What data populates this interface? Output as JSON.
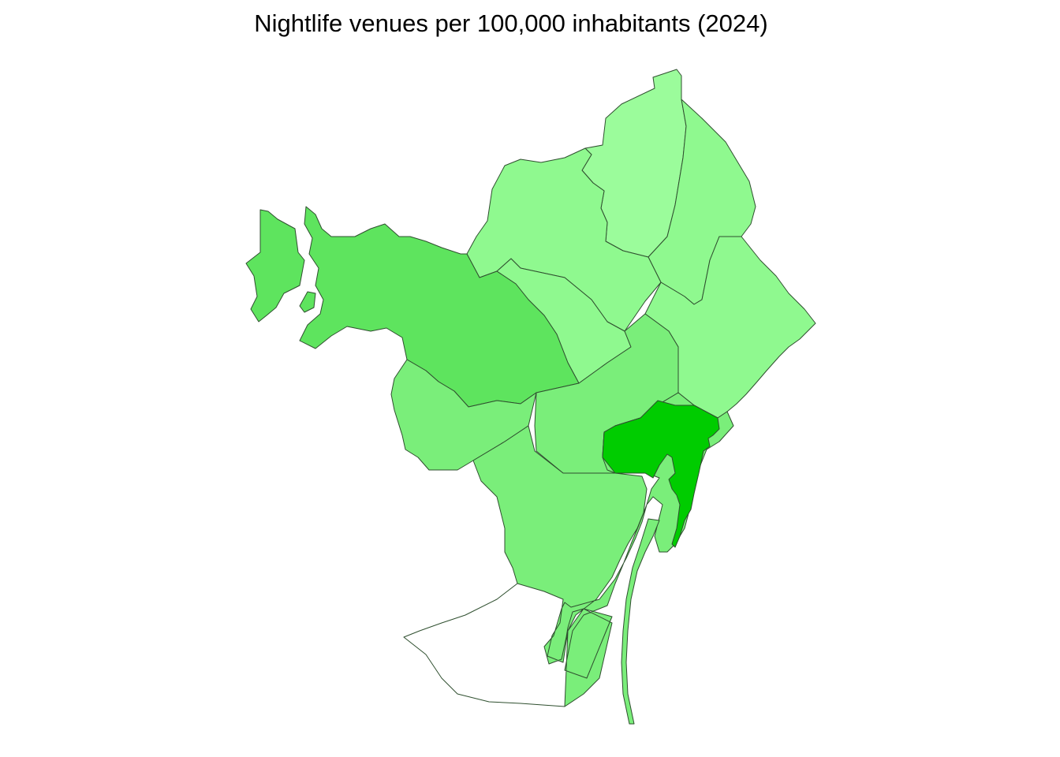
{
  "title": "Nightlife venues per 100,000 inhabitants (2024)",
  "fill_colors": {
    "lightest": "#9bfc9b",
    "light": "#8ff98f",
    "medium": "#7aee7a",
    "medium_strong": "#5ee45e",
    "strongest": "#00cc00"
  },
  "districts": [
    {
      "id": "d1",
      "level": "lightest"
    },
    {
      "id": "d2",
      "level": "light"
    },
    {
      "id": "d3",
      "level": "light"
    },
    {
      "id": "d4",
      "level": "light"
    },
    {
      "id": "d5",
      "level": "medium_strong"
    },
    {
      "id": "d6",
      "level": "medium"
    },
    {
      "id": "d7",
      "level": "medium"
    },
    {
      "id": "d8",
      "level": "medium"
    },
    {
      "id": "d9",
      "level": "light"
    },
    {
      "id": "d10",
      "level": "medium"
    },
    {
      "id": "d11",
      "level": "strongest"
    }
  ]
}
